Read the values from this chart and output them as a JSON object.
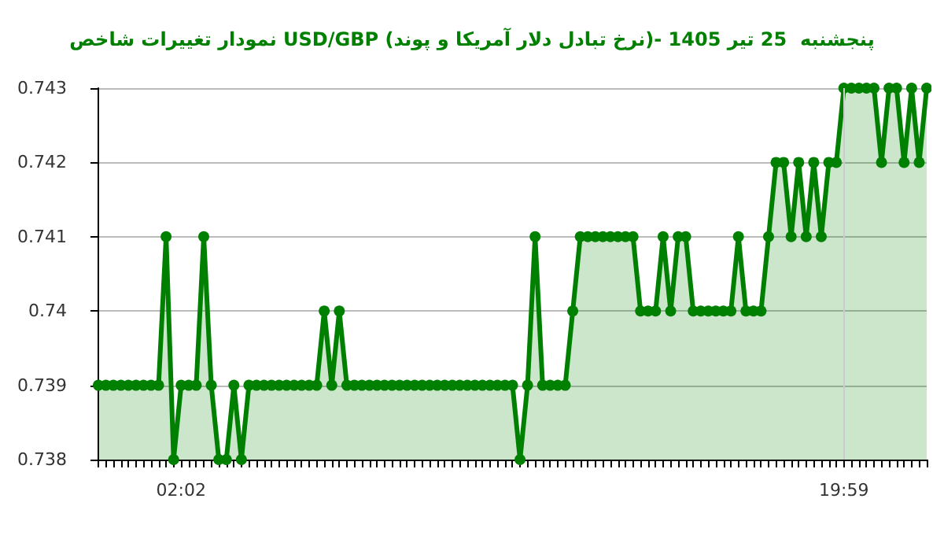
{
  "chart_data": {
    "type": "area",
    "title": "نمودار تغییرات شاخص USD/GBP (نرخ تبادل دلار آمریکا و پوند)- پنجشنبه  25 تیر 1405",
    "categories": [
      null,
      null,
      null,
      null,
      null,
      null,
      null,
      null,
      null,
      null,
      null,
      "02:02",
      null,
      null,
      null,
      null,
      null,
      null,
      null,
      null,
      null,
      null,
      null,
      null,
      null,
      null,
      null,
      null,
      null,
      null,
      null,
      null,
      null,
      null,
      null,
      null,
      null,
      null,
      null,
      null,
      null,
      null,
      null,
      null,
      null,
      null,
      null,
      null,
      null,
      null,
      null,
      null,
      null,
      null,
      null,
      null,
      null,
      null,
      null,
      null,
      null,
      null,
      null,
      null,
      null,
      null,
      null,
      null,
      null,
      null,
      null,
      null,
      null,
      null,
      null,
      null,
      null,
      null,
      null,
      null,
      null,
      null,
      null,
      null,
      null,
      null,
      null,
      null,
      null,
      null,
      null,
      null,
      null,
      null,
      null,
      null,
      null,
      null,
      null,
      "19:59",
      null,
      null,
      null,
      null,
      null,
      null,
      null,
      null,
      null,
      null,
      null
    ],
    "series": [
      {
        "color": "#008000",
        "values": [
          0.739,
          0.739,
          0.739,
          0.739,
          0.739,
          0.739,
          0.739,
          0.739,
          0.739,
          0.741,
          0.738,
          0.739,
          0.739,
          0.739,
          0.741,
          0.739,
          0.738,
          0.738,
          0.739,
          0.738,
          0.739,
          0.739,
          0.739,
          0.739,
          0.739,
          0.739,
          0.739,
          0.739,
          0.739,
          0.739,
          0.74,
          0.739,
          0.74,
          0.739,
          0.739,
          0.739,
          0.739,
          0.739,
          0.739,
          0.739,
          0.739,
          0.739,
          0.739,
          0.739,
          0.739,
          0.739,
          0.739,
          0.739,
          0.739,
          0.739,
          0.739,
          0.739,
          0.739,
          0.739,
          0.739,
          0.739,
          0.738,
          0.739,
          0.741,
          0.739,
          0.739,
          0.739,
          0.739,
          0.74,
          0.741,
          0.741,
          0.741,
          0.741,
          0.741,
          0.741,
          0.741,
          0.741,
          0.74,
          0.74,
          0.74,
          0.741,
          0.74,
          0.741,
          0.741,
          0.74,
          0.74,
          0.74,
          0.74,
          0.74,
          0.74,
          0.741,
          0.74,
          0.74,
          0.74,
          0.741,
          0.742,
          0.742,
          0.741,
          0.742,
          0.741,
          0.742,
          0.741,
          0.742,
          0.742,
          0.743,
          0.743,
          0.743,
          0.743,
          0.743,
          0.742,
          0.743,
          0.743,
          0.742,
          0.743,
          0.742,
          0.743
        ]
      }
    ],
    "ylim": [
      0.738,
      0.743
    ],
    "yticks": [
      0.738,
      0.739,
      0.74,
      0.741,
      0.742,
      0.743
    ],
    "grid": "y",
    "marker": "circle",
    "ref_lines": [
      {
        "axis": "x",
        "value": "19:59",
        "color": "#cccccc"
      }
    ]
  }
}
